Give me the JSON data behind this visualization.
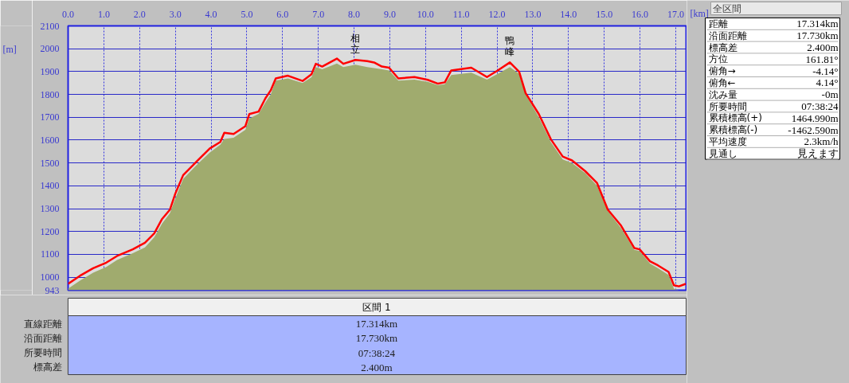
{
  "chart_data": {
    "type": "line",
    "xlabel": "[km]",
    "ylabel": "[m]",
    "x": [
      0,
      0.33,
      0.7,
      1.07,
      1.37,
      1.81,
      2.15,
      2.41,
      2.63,
      2.85,
      3.0,
      3.22,
      3.59,
      3.96,
      4.26,
      4.37,
      4.63,
      4.96,
      5.07,
      5.33,
      5.52,
      5.67,
      5.81,
      6.15,
      6.56,
      6.81,
      6.93,
      7.11,
      7.52,
      7.7,
      8.04,
      8.37,
      8.56,
      8.78,
      8.98,
      9.24,
      9.69,
      10.06,
      10.35,
      10.54,
      10.72,
      11.28,
      11.72,
      12.02,
      12.36,
      12.62,
      12.8,
      13.17,
      13.51,
      13.84,
      14.1,
      14.47,
      14.8,
      15.1,
      15.47,
      15.84,
      15.99,
      16.28,
      16.5,
      16.8,
      16.95,
      17.09,
      17.28
    ],
    "series": [
      {
        "type": "area",
        "color": "#a0ab6e",
        "values": [
          950,
          985,
          1020,
          1045,
          1075,
          1105,
          1130,
          1175,
          1235,
          1280,
          1345,
          1430,
          1490,
          1545,
          1580,
          1605,
          1610,
          1645,
          1695,
          1715,
          1765,
          1800,
          1860,
          1870,
          1850,
          1875,
          1920,
          1910,
          1935,
          1920,
          1930,
          1920,
          1915,
          1910,
          1905,
          1860,
          1865,
          1855,
          1840,
          1845,
          1885,
          1895,
          1865,
          1890,
          1920,
          1890,
          1800,
          1700,
          1590,
          1515,
          1500,
          1455,
          1400,
          1290,
          1215,
          1120,
          1115,
          1060,
          1040,
          1010,
          950,
          943,
          943
        ]
      },
      {
        "type": "line",
        "color": "#ff0000",
        "values": [
          971,
          1006,
          1039,
          1064,
          1093,
          1122,
          1151,
          1192,
          1255,
          1296,
          1366,
          1447,
          1505,
          1563,
          1592,
          1632,
          1627,
          1661,
          1714,
          1725,
          1783,
          1818,
          1870,
          1882,
          1859,
          1888,
          1934,
          1922,
          1957,
          1934,
          1951,
          1946,
          1940,
          1922,
          1917,
          1870,
          1876,
          1864,
          1847,
          1853,
          1905,
          1917,
          1876,
          1905,
          1940,
          1899,
          1806,
          1714,
          1603,
          1528,
          1511,
          1464,
          1412,
          1296,
          1226,
          1128,
          1122,
          1070,
          1052,
          1023,
          965,
          960,
          971
        ]
      }
    ],
    "xlim": [
      0,
      17.314
    ],
    "xticks": [
      {
        "value": 0,
        "label": "0.0"
      },
      {
        "value": 1,
        "label": "1.0"
      },
      {
        "value": 2,
        "label": "2.0"
      },
      {
        "value": 3,
        "label": "3.0"
      },
      {
        "value": 4,
        "label": "4.0"
      },
      {
        "value": 5,
        "label": "5.0"
      },
      {
        "value": 6,
        "label": "6.0"
      },
      {
        "value": 7,
        "label": "7.0"
      },
      {
        "value": 8,
        "label": "8.0"
      },
      {
        "value": 9,
        "label": "9.0"
      },
      {
        "value": 10,
        "label": "10.0"
      },
      {
        "value": 11,
        "label": "11.0"
      },
      {
        "value": 12,
        "label": "12.0"
      },
      {
        "value": 13,
        "label": "13.0"
      },
      {
        "value": 14,
        "label": "14.0"
      },
      {
        "value": 15,
        "label": "15.0"
      },
      {
        "value": 16,
        "label": "16.0"
      },
      {
        "value": 17,
        "label": "17.0"
      }
    ],
    "ylim": [
      943,
      2100
    ],
    "yticks": [
      943,
      1000,
      1100,
      1200,
      1300,
      1400,
      1500,
      1600,
      1700,
      1800,
      1900,
      2000,
      2100
    ],
    "grid": true,
    "marker": "none",
    "line_style": "solid",
    "annotations": [
      {
        "text": "相立",
        "x": 8.04,
        "y": 1951
      },
      {
        "text": "鴨峰",
        "x": 12.36,
        "y": 1940
      },
      "全区間",
      "距離",
      "17.314km",
      "沿面距離",
      "17.730km",
      "標高差",
      "2.400m",
      "方位",
      "161.81°",
      "俯角→",
      "-4.14°",
      "俯角←",
      "4.14°",
      "沈み量",
      "-0m",
      "所要時間",
      "07:38:24",
      "累積標高(+)",
      "1464.990m",
      "累積標高(-)",
      "-1462.590m",
      "平均速度",
      "2.3km/h",
      "見通し",
      "見えます",
      "区間 1",
      "直線距離",
      "沿面距離",
      "所要時間",
      "標高差",
      "17.314km",
      "17.730km",
      "07:38:24",
      "2.400m"
    ]
  }
}
